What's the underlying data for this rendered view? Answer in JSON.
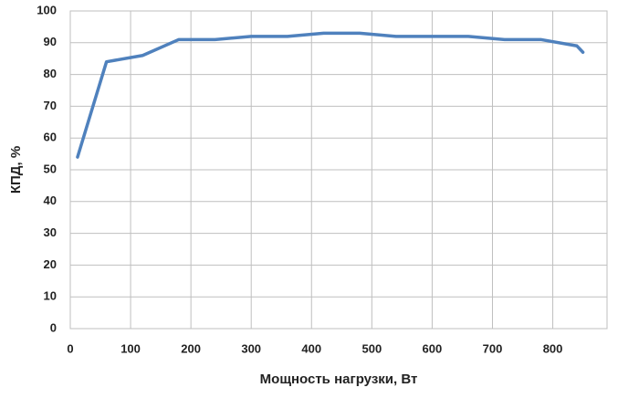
{
  "chart_data": {
    "type": "line",
    "x_label": "Мощность нагрузки, Вт",
    "y_label": "КПД, %",
    "x": [
      12,
      60,
      120,
      180,
      240,
      300,
      360,
      420,
      480,
      540,
      600,
      660,
      720,
      780,
      840,
      850
    ],
    "series": [
      {
        "name": "КПД",
        "color": "#4f81bd",
        "values": [
          54,
          84,
          86,
          91,
          91,
          92,
          92,
          93,
          93,
          92,
          92,
          92,
          91,
          91,
          89,
          87
        ]
      }
    ],
    "xlim": [
      0,
      890
    ],
    "xticks": [
      0,
      100,
      200,
      300,
      400,
      500,
      600,
      700,
      800
    ],
    "ylim": [
      0,
      100
    ],
    "yticks": [
      0,
      10,
      20,
      30,
      40,
      50,
      60,
      70,
      80,
      90,
      100
    ],
    "grid": true,
    "legend": false
  }
}
